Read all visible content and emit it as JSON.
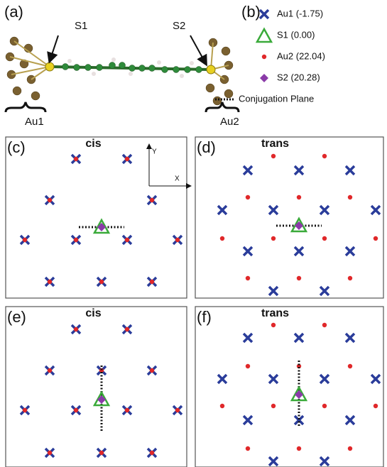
{
  "panel_a": {
    "label": "(a)",
    "s1": "S1",
    "s2": "S2",
    "au1": "Au1",
    "au2": "Au2"
  },
  "panel_b": {
    "label": "(b)",
    "legend": [
      "Au1 (-1.75)",
      "S1 (0.00)",
      "Au2 (22.04)",
      "S2 (20.28)",
      "Conjugation Plane"
    ]
  },
  "panels": [
    {
      "label": "(c)",
      "title": "cis",
      "axis_y": "Y",
      "axis_x": "X"
    },
    {
      "label": "(d)",
      "title": "trans"
    },
    {
      "label": "(e)",
      "title": "cis"
    },
    {
      "label": "(f)",
      "title": "trans"
    }
  ]
}
